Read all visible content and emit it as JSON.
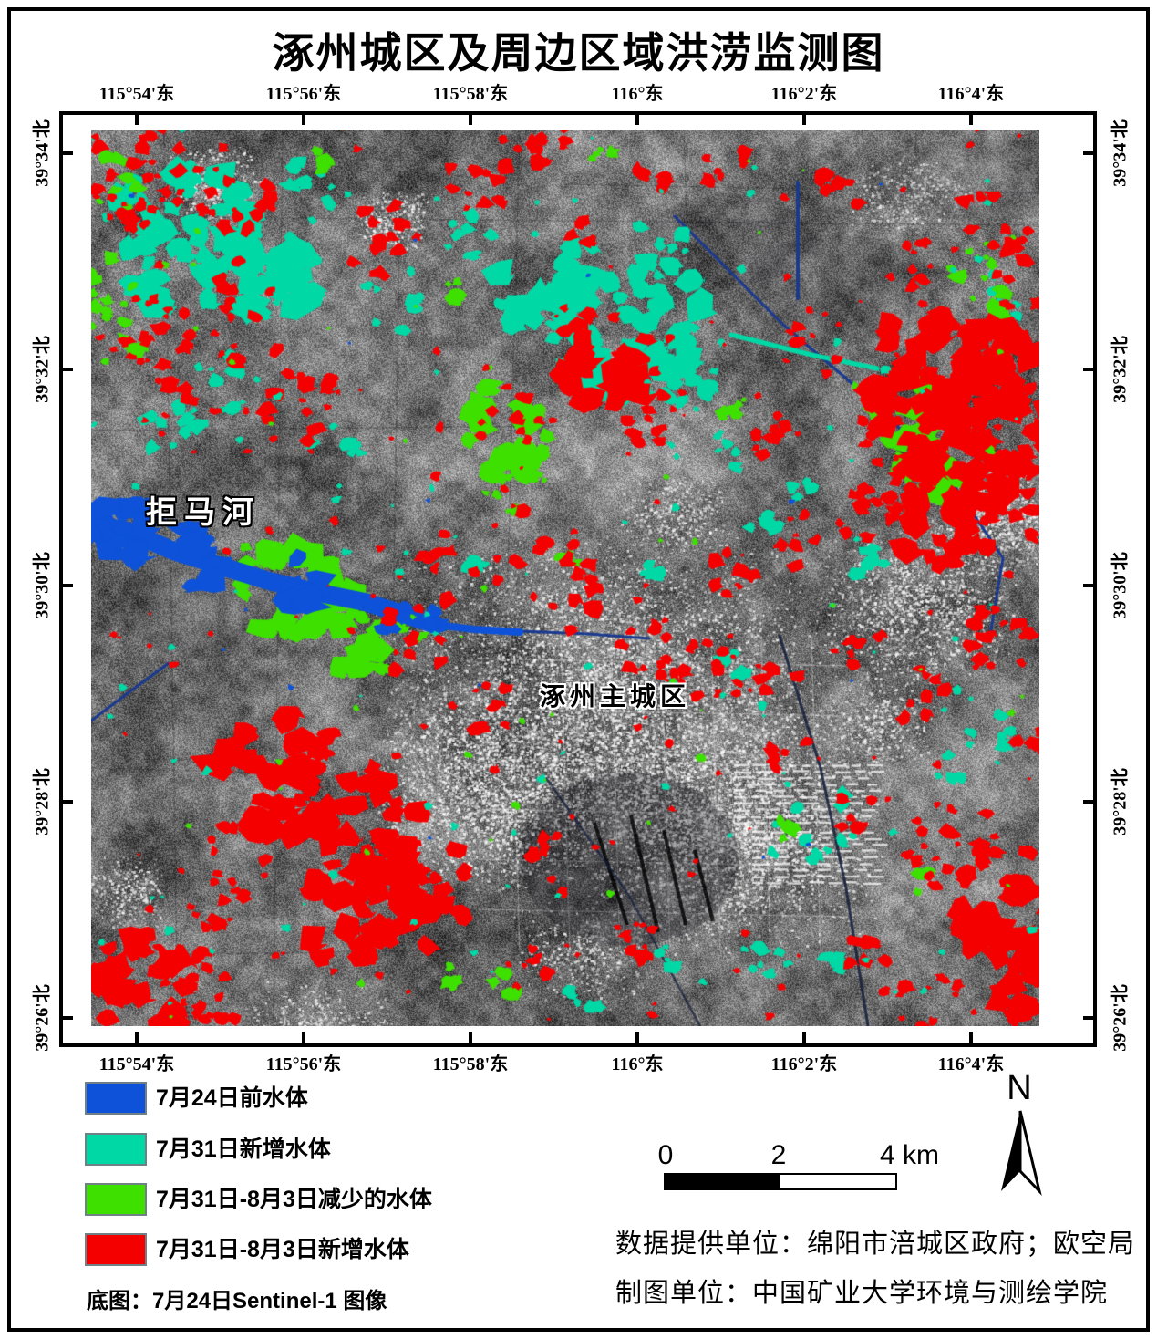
{
  "title": "涿州城区及周边区域洪涝监测图",
  "axes": {
    "longitude": [
      "115°54'东",
      "115°56'东",
      "115°58'东",
      "116°东",
      "116°2'东",
      "116°4'东"
    ],
    "latitude": [
      "39°34'北",
      "39°32'北",
      "39°30'北",
      "39°28'北",
      "39°26'北"
    ]
  },
  "map_labels": {
    "river": "拒马河",
    "main_city": "涿州主城区"
  },
  "legend": {
    "items": [
      {
        "label": "7月24日前水体",
        "color": "#0d52d8"
      },
      {
        "label": "7月31日新增水体",
        "color": "#00d9a6"
      },
      {
        "label": "7月31日-8月3日减少的水体",
        "color": "#3ee000"
      },
      {
        "label": "7月31日-8月3日新增水体",
        "color": "#f50000"
      }
    ],
    "basemap_note": "底图：7月24日Sentinel-1 图像"
  },
  "scale_bar": {
    "ticks": [
      "0",
      "2",
      "4 km"
    ]
  },
  "north_arrow": {
    "label": "N"
  },
  "credits": {
    "line1": "数据提供单位：绵阳市涪城区政府；欧空局",
    "line2": "制图单位：中国矿业大学环境与测绘学院"
  },
  "colors": {
    "prior_water": "#0d52d8",
    "new_water_0731": "#00d9a6",
    "receded_water_0731_0803": "#3ee000",
    "new_water_0731_0803": "#f50000",
    "navy_channel": "#1b3a8f"
  }
}
